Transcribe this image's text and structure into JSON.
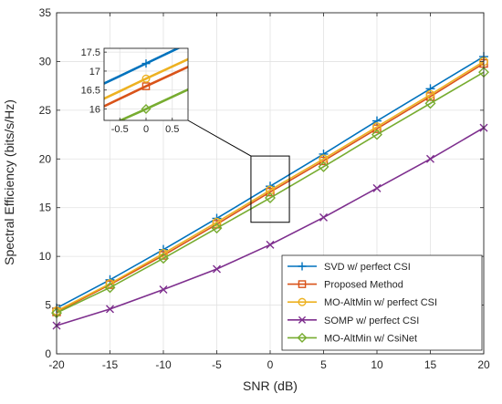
{
  "chart_data": {
    "type": "line",
    "xlabel": "SNR (dB)",
    "ylabel": "Spectral Efficiency (bits/s/Hz)",
    "xlim": [
      -20,
      20
    ],
    "ylim": [
      0,
      35
    ],
    "xticks": [
      -20,
      -15,
      -10,
      -5,
      0,
      5,
      10,
      15,
      20
    ],
    "yticks": [
      0,
      5,
      10,
      15,
      20,
      25,
      30,
      35
    ],
    "grid": true,
    "legend_position": "bottom-right",
    "x": [
      -20,
      -15,
      -10,
      -5,
      0,
      5,
      10,
      15,
      20
    ],
    "series": [
      {
        "name": "SVD w/ perfect CSI",
        "color": "#0072BD",
        "marker": "plus",
        "values": [
          4.7,
          7.6,
          10.7,
          13.9,
          17.2,
          20.5,
          23.9,
          27.2,
          30.5
        ]
      },
      {
        "name": "Proposed Method",
        "color": "#D95319",
        "marker": "square",
        "values": [
          4.3,
          7.1,
          10.1,
          13.3,
          16.6,
          19.8,
          23.1,
          26.4,
          29.8
        ]
      },
      {
        "name": "MO-AltMin w/ perfect CSI",
        "color": "#EDB120",
        "marker": "circle",
        "values": [
          4.4,
          7.2,
          10.3,
          13.5,
          16.8,
          20.0,
          23.3,
          26.6,
          30.0
        ]
      },
      {
        "name": "SOMP w/ perfect CSI",
        "color": "#7E2F8E",
        "marker": "x",
        "values": [
          2.9,
          4.6,
          6.6,
          8.7,
          11.2,
          14.0,
          17.0,
          20.0,
          23.2
        ]
      },
      {
        "name": "MO-AltMin w/ CsiNet",
        "color": "#77AC30",
        "marker": "diamond",
        "values": [
          4.2,
          6.8,
          9.8,
          12.9,
          16.0,
          19.2,
          22.5,
          25.7,
          28.9
        ]
      }
    ],
    "inset": {
      "xlim": [
        -0.8,
        0.8
      ],
      "ylim": [
        15.7,
        17.6
      ],
      "xticks": [
        -0.5,
        0,
        0.5
      ],
      "yticks": [
        16,
        16.5,
        17,
        17.5
      ],
      "zoom_region_x": [
        -1.8,
        1.8
      ],
      "zoom_region_y": [
        13.5,
        20.3
      ]
    }
  }
}
